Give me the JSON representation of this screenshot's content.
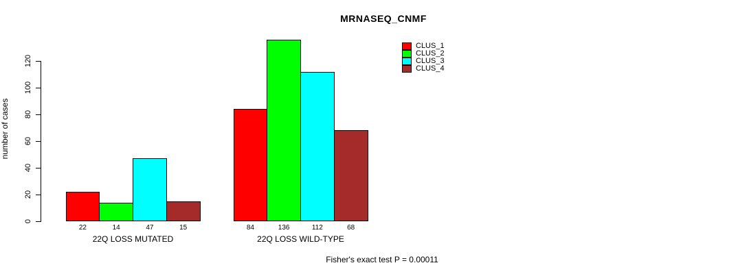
{
  "chart_data": {
    "type": "bar",
    "title": "MRNASEQ_CNMF",
    "ylabel": "number of cases",
    "ylim": [
      0,
      120
    ],
    "yticks": [
      0,
      20,
      40,
      60,
      80,
      100,
      120
    ],
    "grid": false,
    "legend_position": "top-right",
    "categories": [
      "22Q LOSS MUTATED",
      "22Q LOSS WILD-TYPE"
    ],
    "series": [
      {
        "name": "CLUS_1",
        "color": "#ff0000",
        "values": [
          22,
          84
        ]
      },
      {
        "name": "CLUS_2",
        "color": "#00ff00",
        "values": [
          14,
          136
        ]
      },
      {
        "name": "CLUS_3",
        "color": "#00ffff",
        "values": [
          47,
          112
        ]
      },
      {
        "name": "CLUS_4",
        "color": "#a52a2a",
        "values": [
          15,
          68
        ]
      }
    ],
    "footer": "Fisher's exact test P = 0.00011"
  }
}
